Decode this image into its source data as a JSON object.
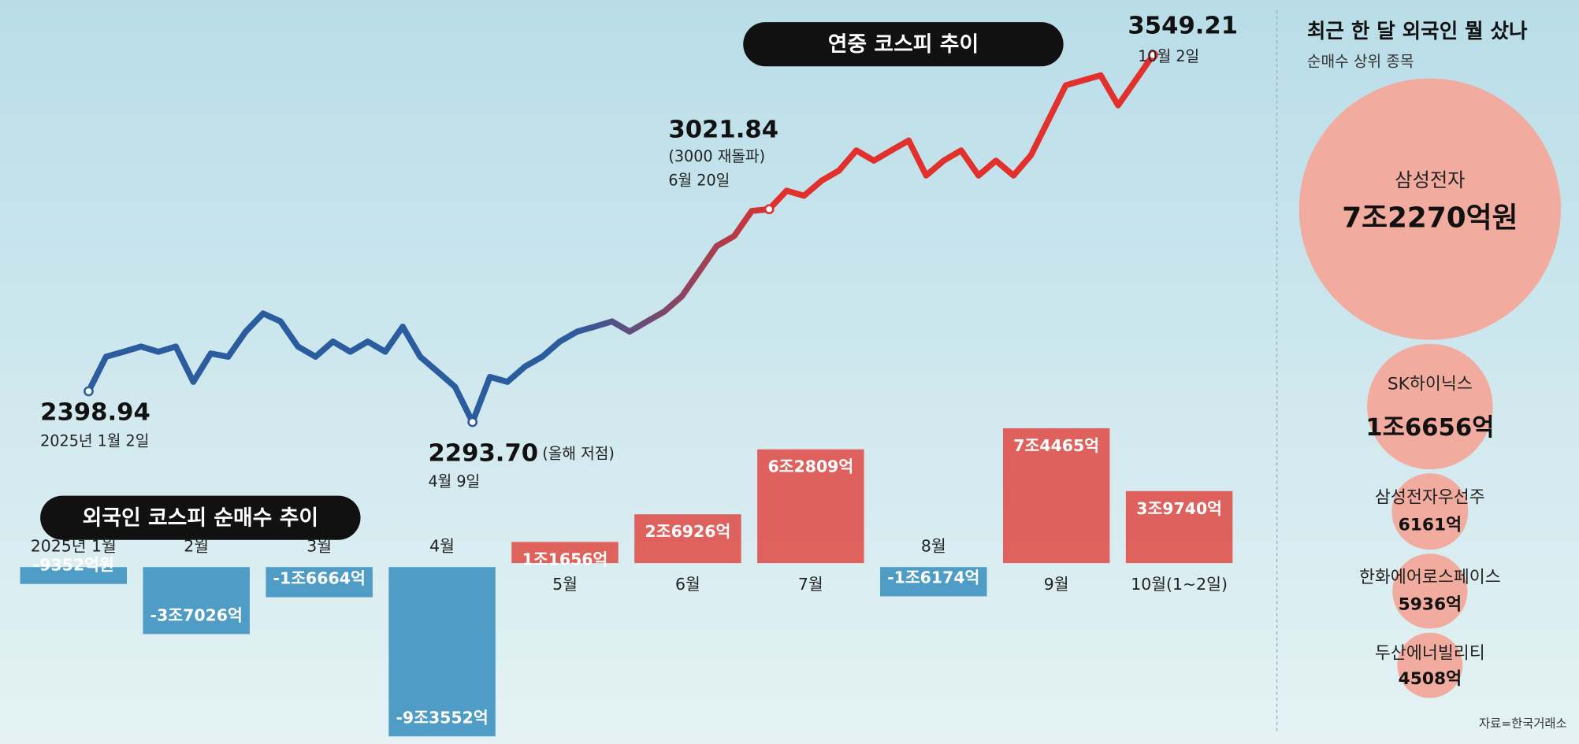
{
  "chart_data": [
    {
      "type": "line",
      "title": "연중 코스피 추이",
      "values": [
        2398.94,
        2517,
        2534,
        2552,
        2534,
        2552,
        2431,
        2528,
        2517,
        2603,
        2665,
        2638,
        2552,
        2517,
        2569,
        2534,
        2569,
        2534,
        2620,
        2517,
        2466,
        2414,
        2293.7,
        2448,
        2431,
        2483,
        2517,
        2569,
        2603,
        2620,
        2638,
        2603,
        2638,
        2672,
        2724,
        2810,
        2896,
        2930,
        3016,
        3021.84,
        3085,
        3068,
        3119,
        3154,
        3223,
        3188,
        3223,
        3257,
        3137,
        3188,
        3223,
        3137,
        3188,
        3137,
        3206,
        3326,
        3446,
        3463,
        3480,
        3377,
        3463,
        3549.21
      ],
      "ylim": [
        2200,
        3600
      ],
      "colors": [
        "#2a5c9e",
        "#e2302c"
      ],
      "annotations": [
        {
          "index": 0,
          "label": "2398.94",
          "date": "2025년 1월 2일"
        },
        {
          "index": 22,
          "label": "2293.70",
          "note": "(올해 저점)",
          "date": "4월 9일"
        },
        {
          "index": 39,
          "label": "3021.84",
          "note": "(3000 재돌파)",
          "date": "6월 20일"
        },
        {
          "index": 61,
          "label": "3549.21",
          "date": "10월 2일"
        }
      ]
    },
    {
      "type": "bar",
      "title": "외국인 코스피 순매수 추이",
      "categories": [
        "2025년 1월",
        "2월",
        "3월",
        "4월",
        "5월",
        "6월",
        "7월",
        "8월",
        "9월",
        "10월(1~2일)"
      ],
      "values": [
        -9352,
        -37026,
        -16664,
        -93552,
        11656,
        26926,
        62809,
        -16174,
        74465,
        39740
      ],
      "value_labels": [
        "-9352억원",
        "-3조7026억",
        "-1조6664억",
        "-9조3552억",
        "1조1656억",
        "2조6926억",
        "6조2809억",
        "-1조6174억",
        "7조4465억",
        "3조9740억"
      ],
      "colors": [
        "#e0524c",
        "#4f9cc6"
      ]
    },
    {
      "type": "bubble",
      "title": "최근 한 달 외국인 뭘 샀나",
      "subtitle": "순매수 상위 종목",
      "categories": [
        "삼성전자",
        "SK하이닉스",
        "삼성전자우선주",
        "한화에어로스페이스",
        "두산에너빌리티"
      ],
      "values": [
        72270,
        16656,
        6161,
        5936,
        4508
      ],
      "value_labels": [
        "7조2270억원",
        "1조6656억",
        "6161억",
        "5936억",
        "4508억"
      ],
      "color": "#f2ac9f"
    }
  ],
  "source": "자료=한국거래소"
}
